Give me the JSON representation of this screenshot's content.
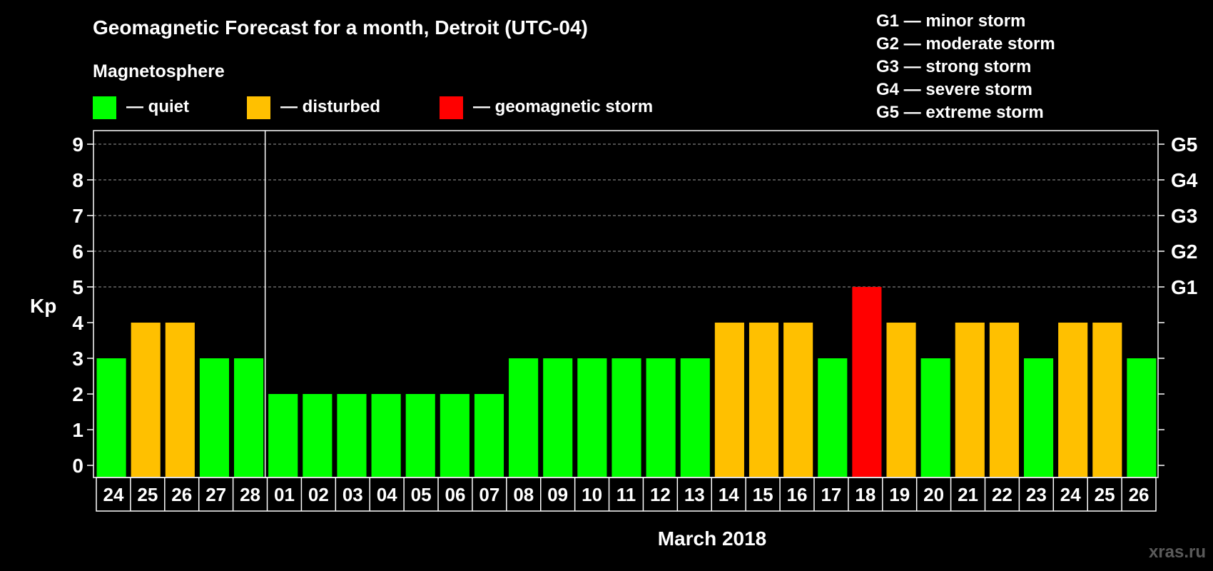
{
  "chart_data": {
    "type": "bar",
    "title": "Geomagnetic Forecast for a month, Detroit (UTC-04)",
    "subtitle": "Magnetosphere",
    "legend": [
      {
        "key": "quiet",
        "label": "— quiet",
        "color": "#00ff00"
      },
      {
        "key": "disturbed",
        "label": "— disturbed",
        "color": "#ffc000"
      },
      {
        "key": "storm",
        "label": "— geomagnetic storm",
        "color": "#ff0000"
      }
    ],
    "storm_scale": [
      "G1 — minor storm",
      "G2 — moderate storm",
      "G3 — strong storm",
      "G4 — severe storm",
      "G5 — extreme storm"
    ],
    "ylabel": "Kp",
    "xlabel": "March 2018",
    "ylim": [
      0,
      9
    ],
    "yticks": [
      "0",
      "1",
      "2",
      "3",
      "4",
      "5",
      "6",
      "7",
      "8",
      "9"
    ],
    "right_ticks": [
      {
        "kp": 5,
        "label": "G1"
      },
      {
        "kp": 6,
        "label": "G2"
      },
      {
        "kp": 7,
        "label": "G3"
      },
      {
        "kp": 8,
        "label": "G4"
      },
      {
        "kp": 9,
        "label": "G5"
      }
    ],
    "grid": true,
    "month_separator_after": "28",
    "categories": [
      "24",
      "25",
      "26",
      "27",
      "28",
      "01",
      "02",
      "03",
      "04",
      "05",
      "06",
      "07",
      "08",
      "09",
      "10",
      "11",
      "12",
      "13",
      "14",
      "15",
      "16",
      "17",
      "18",
      "19",
      "20",
      "21",
      "22",
      "23",
      "24",
      "25",
      "26"
    ],
    "values": [
      3,
      4,
      4,
      3,
      3,
      2,
      2,
      2,
      2,
      2,
      2,
      2,
      3,
      3,
      3,
      3,
      3,
      3,
      4,
      4,
      4,
      3,
      5,
      4,
      3,
      4,
      4,
      3,
      4,
      4,
      3
    ],
    "status": [
      "quiet",
      "disturbed",
      "disturbed",
      "quiet",
      "quiet",
      "quiet",
      "quiet",
      "quiet",
      "quiet",
      "quiet",
      "quiet",
      "quiet",
      "quiet",
      "quiet",
      "quiet",
      "quiet",
      "quiet",
      "quiet",
      "disturbed",
      "disturbed",
      "disturbed",
      "quiet",
      "storm",
      "disturbed",
      "quiet",
      "disturbed",
      "disturbed",
      "quiet",
      "disturbed",
      "disturbed",
      "quiet"
    ]
  },
  "watermark": "xras.ru"
}
